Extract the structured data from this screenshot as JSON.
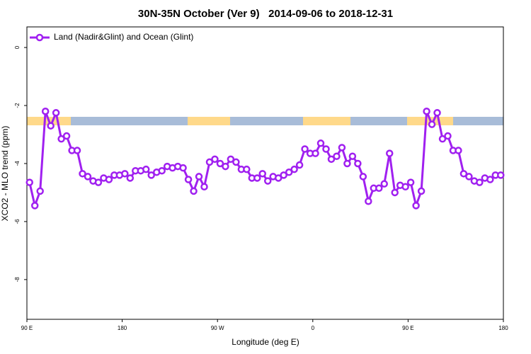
{
  "chart_data": {
    "type": "line",
    "title": "30N-35N October (Ver 9)   2014-09-06 to 2018-12-31",
    "xlabel": "Longitude (deg E)",
    "ylabel": "XCO2 - MLO trend (ppm)",
    "xlim": [
      90,
      540
    ],
    "ylim": [
      -9.37,
      0.71
    ],
    "xticks": [
      {
        "value": 90,
        "label": "90 E"
      },
      180,
      {
        "value": 270,
        "label": "90 W"
      },
      {
        "value": 360,
        "label": "0"
      },
      {
        "value": 450,
        "label": "90 E"
      },
      {
        "value": 540,
        "label": "180"
      }
    ],
    "yticks": [
      0,
      -2,
      -4,
      -6,
      -8
    ],
    "legend": "top-left",
    "x": [
      92.5,
      97.5,
      102.5,
      107.5,
      112.5,
      117.5,
      122.5,
      127.5,
      132.5,
      137.5,
      142.5,
      147.5,
      152.5,
      157.5,
      162.5,
      167.5,
      172.5,
      177.5,
      182.5,
      187.5,
      192.5,
      197.5,
      202.5,
      207.5,
      212.5,
      217.5,
      222.5,
      227.5,
      232.5,
      237.5,
      242.5,
      247.5,
      252.5,
      257.5,
      262.5,
      267.5,
      272.5,
      277.5,
      282.5,
      287.5,
      292.5,
      297.5,
      302.5,
      307.5,
      312.5,
      317.5,
      322.5,
      327.5,
      332.5,
      337.5,
      342.5,
      347.5,
      352.5,
      357.5,
      362.5,
      367.5,
      372.5,
      377.5,
      382.5,
      387.5,
      392.5,
      397.5,
      402.5,
      407.5,
      412.5,
      417.5,
      422.5,
      427.5,
      432.5,
      437.5,
      442.5,
      447.5,
      452.5,
      457.5,
      462.5,
      467.5,
      472.5,
      477.5,
      482.5,
      487.5,
      492.5,
      497.5,
      502.5,
      507.5,
      512.5,
      517.5,
      522.5,
      527.5,
      532.5,
      537.5
    ],
    "series": [
      {
        "name": "Land (Nadir&Glint) and Ocean (Glint)",
        "color": "#a020f0",
        "values": [
          -4.65,
          -5.45,
          -4.95,
          -2.2,
          -2.7,
          -2.25,
          -3.15,
          -3.05,
          -3.55,
          -3.55,
          -4.35,
          -4.45,
          -4.6,
          -4.65,
          -4.5,
          -4.55,
          -4.4,
          -4.4,
          -4.35,
          -4.5,
          -4.25,
          -4.25,
          -4.2,
          -4.4,
          -4.3,
          -4.25,
          -4.1,
          -4.15,
          -4.1,
          -4.15,
          -4.55,
          -4.95,
          -4.45,
          -4.8,
          -3.95,
          -3.85,
          -4.0,
          -4.1,
          -3.85,
          -3.95,
          -4.2,
          -4.2,
          -4.5,
          -4.5,
          -4.35,
          -4.6,
          -4.45,
          -4.5,
          -4.4,
          -4.3,
          -4.2,
          -4.05,
          -3.5,
          -3.65,
          -3.65,
          -3.3,
          -3.5,
          -3.85,
          -3.75,
          -3.45,
          -4.0,
          -3.75,
          -4.0,
          -4.45,
          -5.3,
          -4.85,
          -4.85,
          -4.7,
          -3.65,
          -5.0,
          -4.75,
          -4.8,
          -4.65,
          -5.45,
          -4.95,
          -2.2,
          -2.65,
          -2.25,
          -3.15,
          -3.05,
          -3.55,
          -3.55,
          -4.35,
          -4.45,
          -4.6,
          -4.65,
          -4.5,
          -4.55,
          -4.4,
          -4.4
        ]
      }
    ]
  }
}
